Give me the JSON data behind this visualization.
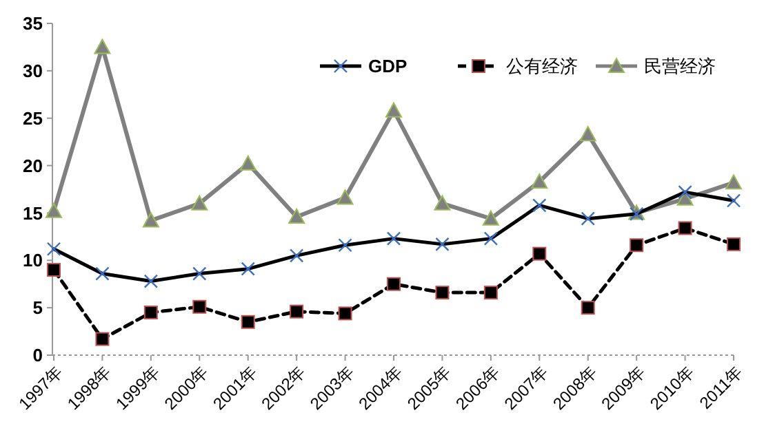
{
  "chart_data": {
    "type": "line",
    "categories": [
      "1997年",
      "1998年",
      "1999年",
      "2000年",
      "2001年",
      "2002年",
      "2003年",
      "2004年",
      "2005年",
      "2006年",
      "2007年",
      "2008年",
      "2009年",
      "2010年",
      "2011年"
    ],
    "ylim": [
      0,
      35
    ],
    "yticks": [
      0,
      5,
      10,
      15,
      20,
      25,
      30,
      35
    ],
    "grid": false,
    "legend": "top right",
    "series": [
      {
        "name": "GDP",
        "color": "#000000",
        "marker": "cross",
        "line_style": "solid",
        "values": [
          11.2,
          8.6,
          7.8,
          8.6,
          9.1,
          10.5,
          11.6,
          12.3,
          11.7,
          12.3,
          15.8,
          14.4,
          14.9,
          17.2,
          16.3
        ]
      },
      {
        "name": "公有经济",
        "color": "#000000",
        "marker": "square",
        "line_style": "dashed",
        "values": [
          9.0,
          1.7,
          4.5,
          5.1,
          3.5,
          4.6,
          4.4,
          7.5,
          6.6,
          6.6,
          10.7,
          5.0,
          11.6,
          13.4,
          11.7
        ]
      },
      {
        "name": "民营经济",
        "color": "#808080",
        "marker": "triangle",
        "line_style": "solid",
        "values": [
          15.2,
          32.5,
          14.2,
          16.0,
          20.2,
          14.6,
          16.6,
          25.8,
          16.0,
          14.4,
          18.3,
          23.3,
          15.0,
          16.5,
          18.2
        ]
      }
    ]
  }
}
